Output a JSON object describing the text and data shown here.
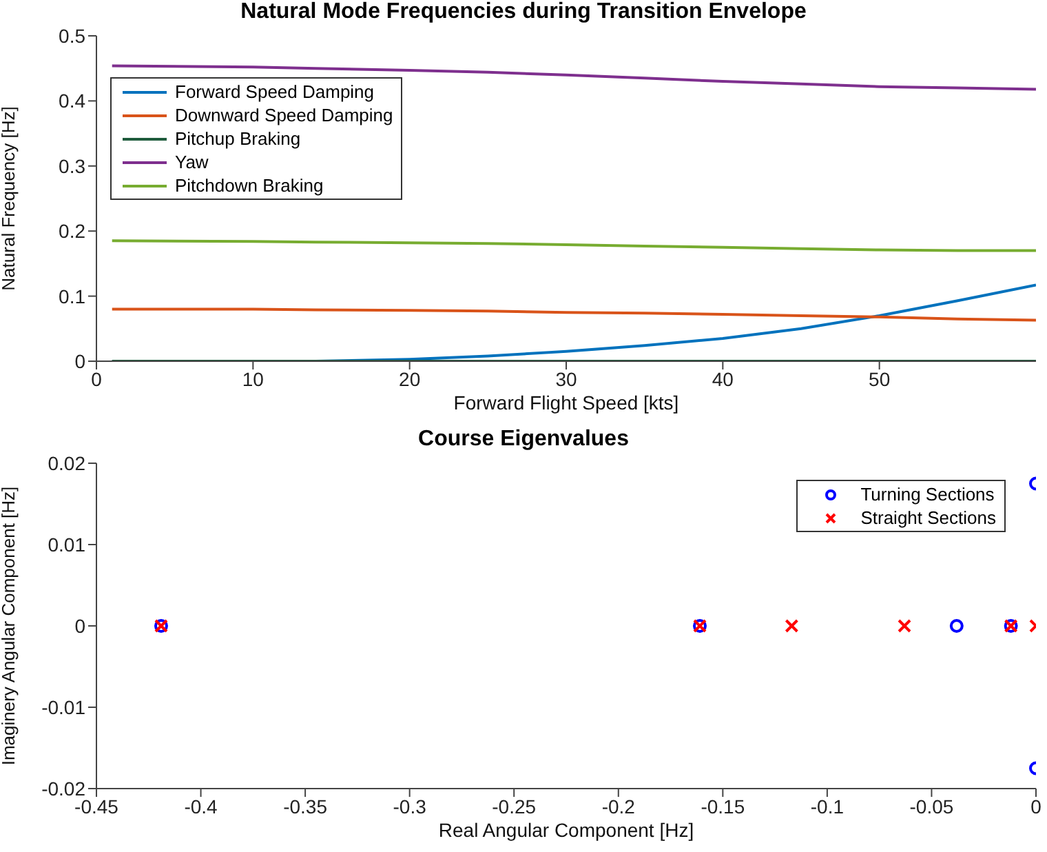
{
  "chart_data": [
    {
      "type": "line",
      "title": "Natural Mode Frequencies during Transition Envelope",
      "xlabel": "Forward Flight Speed [kts]",
      "ylabel": "Natural Frequency [Hz]",
      "x": [
        1,
        10,
        14,
        20,
        25,
        30,
        35,
        40,
        45,
        50,
        55,
        60
      ],
      "series": [
        {
          "name": "Forward Speed Damping",
          "color": "#0072bd",
          "values": [
            0,
            0,
            0,
            0.003,
            0.008,
            0.015,
            0.024,
            0.035,
            0.05,
            0.07,
            0.093,
            0.117
          ]
        },
        {
          "name": "Downward Speed Damping",
          "color": "#d95319",
          "values": [
            0.08,
            0.08,
            0.079,
            0.078,
            0.077,
            0.075,
            0.074,
            0.072,
            0.07,
            0.068,
            0.065,
            0.063
          ]
        },
        {
          "name": "Pitchup Braking",
          "color": "#1e5b3c",
          "values": [
            0,
            0,
            0,
            0,
            0,
            0,
            0,
            0,
            0,
            0,
            0,
            0
          ]
        },
        {
          "name": "Yaw",
          "color": "#7e2f8e",
          "values": [
            0.454,
            0.452,
            0.45,
            0.447,
            0.444,
            0.44,
            0.435,
            0.43,
            0.426,
            0.422,
            0.42,
            0.418
          ]
        },
        {
          "name": "Pitchdown Braking",
          "color": "#77ac30",
          "values": [
            0.185,
            0.184,
            0.183,
            0.182,
            0.181,
            0.179,
            0.177,
            0.175,
            0.173,
            0.171,
            0.17,
            0.17
          ]
        }
      ],
      "xlim": [
        0,
        60
      ],
      "xticks": [
        0,
        10,
        20,
        30,
        40,
        50
      ],
      "ylim": [
        0,
        0.5
      ],
      "yticks": [
        0,
        0.1,
        0.2,
        0.3,
        0.4,
        0.5
      ],
      "grid": false,
      "legend": "top left",
      "marker": "none",
      "line_style": "solid"
    },
    {
      "type": "scatter",
      "title": "Course Eigenvalues",
      "xlabel": "Real Angular Component [Hz]",
      "ylabel": "Imaginery Angular Component [Hz]",
      "series": [
        {
          "name": "Turning Sections",
          "color": "#0000ff",
          "marker": "circle",
          "x": [
            -0.419,
            -0.161,
            -0.038,
            -0.012,
            0,
            0
          ],
          "values": [
            0,
            0,
            0,
            0,
            0.0175,
            -0.0175
          ]
        },
        {
          "name": "Straight Sections",
          "color": "#ff0000",
          "marker": "cross",
          "x": [
            -0.419,
            -0.161,
            -0.117,
            -0.063,
            -0.012,
            0
          ],
          "values": [
            0,
            0,
            0,
            0,
            0,
            0
          ]
        }
      ],
      "xlim": [
        -0.45,
        0
      ],
      "xticks": [
        -0.45,
        -0.4,
        -0.35,
        -0.3,
        -0.25,
        -0.2,
        -0.15,
        -0.1,
        -0.05,
        0
      ],
      "ylim": [
        -0.02,
        0.02
      ],
      "yticks": [
        -0.02,
        -0.01,
        0,
        0.01,
        0.02
      ],
      "grid": false,
      "legend": "top right"
    }
  ]
}
